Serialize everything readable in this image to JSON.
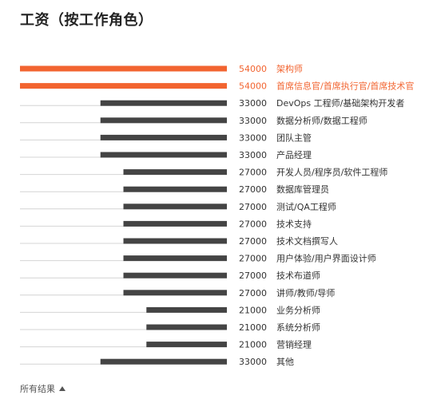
{
  "chart_data": {
    "type": "bar",
    "title": "工资（按工作角色）",
    "orientation": "horizontal",
    "categories": [
      "架构师",
      "首席信息官/首席执行官/首席技术官",
      "DevOps 工程师/基础架构开发者",
      "数据分析师/数据工程师",
      "团队主管",
      "产品经理",
      "开发人员/程序员/软件工程师",
      "数据库管理员",
      "测试/QA工程师",
      "技术支持",
      "技术文档撰写人",
      "用户体验/用户界面设计师",
      "技术布道师",
      "讲师/教师/导师",
      "业务分析师",
      "系统分析师",
      "营销经理",
      "其他"
    ],
    "values": [
      54000,
      54000,
      33000,
      33000,
      33000,
      33000,
      27000,
      27000,
      27000,
      27000,
      27000,
      27000,
      27000,
      27000,
      21000,
      21000,
      21000,
      33000
    ],
    "highlighted": [
      0,
      1
    ],
    "xlim": [
      0,
      54000
    ],
    "grid": false,
    "legend": "none",
    "colors": {
      "highlight": "#f26430",
      "bar": "#444444",
      "track": "#d4d4d4",
      "text": "#333333"
    }
  },
  "footer": {
    "toggle_label": "所有结果",
    "icon": "caret-up-icon"
  }
}
